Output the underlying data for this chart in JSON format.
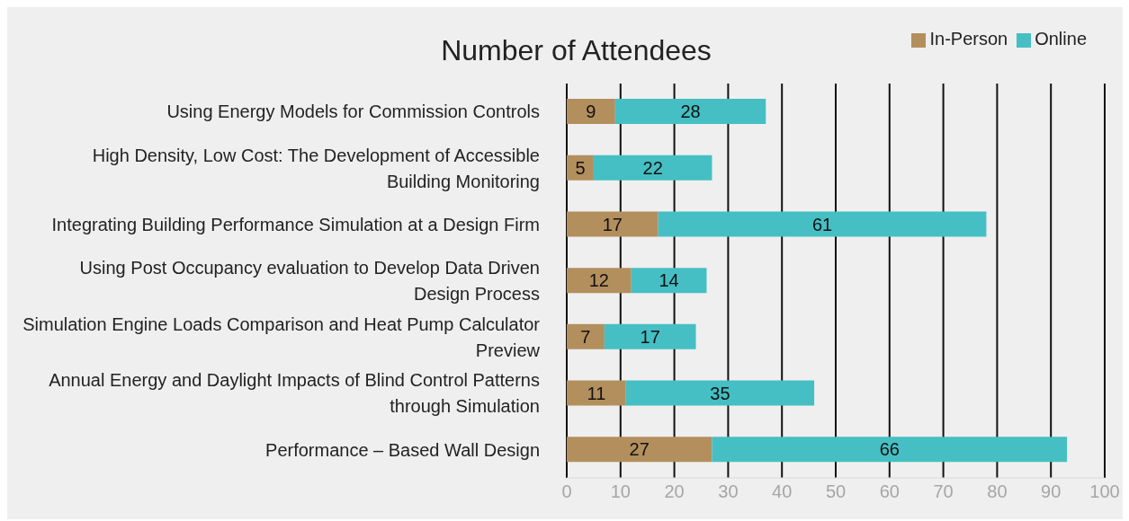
{
  "chart_data": {
    "type": "bar",
    "title": "Number of Attendees",
    "orientation": "horizontal",
    "stacked": true,
    "categories": [
      "Using Energy Models for Commission Controls",
      "High Density, Low Cost: The Development of Accessible Building Monitoring",
      "Integrating Building Performance Simulation at a Design Firm",
      "Using Post Occupancy evaluation to Develop Data Driven Design Process",
      "Simulation Engine Loads Comparison and Heat Pump Calculator Preview",
      "Annual Energy and Daylight Impacts of Blind Control Patterns through Simulation",
      "Performance – Based Wall Design"
    ],
    "series": [
      {
        "name": "In-Person",
        "color": "#b38f5e",
        "values": [
          9,
          5,
          17,
          12,
          7,
          11,
          27
        ]
      },
      {
        "name": "Online",
        "color": "#45bfc3",
        "values": [
          28,
          22,
          61,
          14,
          17,
          35,
          66
        ]
      }
    ],
    "xlim": [
      0,
      100
    ],
    "xticks": [
      0,
      10,
      20,
      30,
      40,
      50,
      60,
      70,
      80,
      90,
      100
    ],
    "grid": "x",
    "legend": "top right",
    "data_labels": true
  }
}
